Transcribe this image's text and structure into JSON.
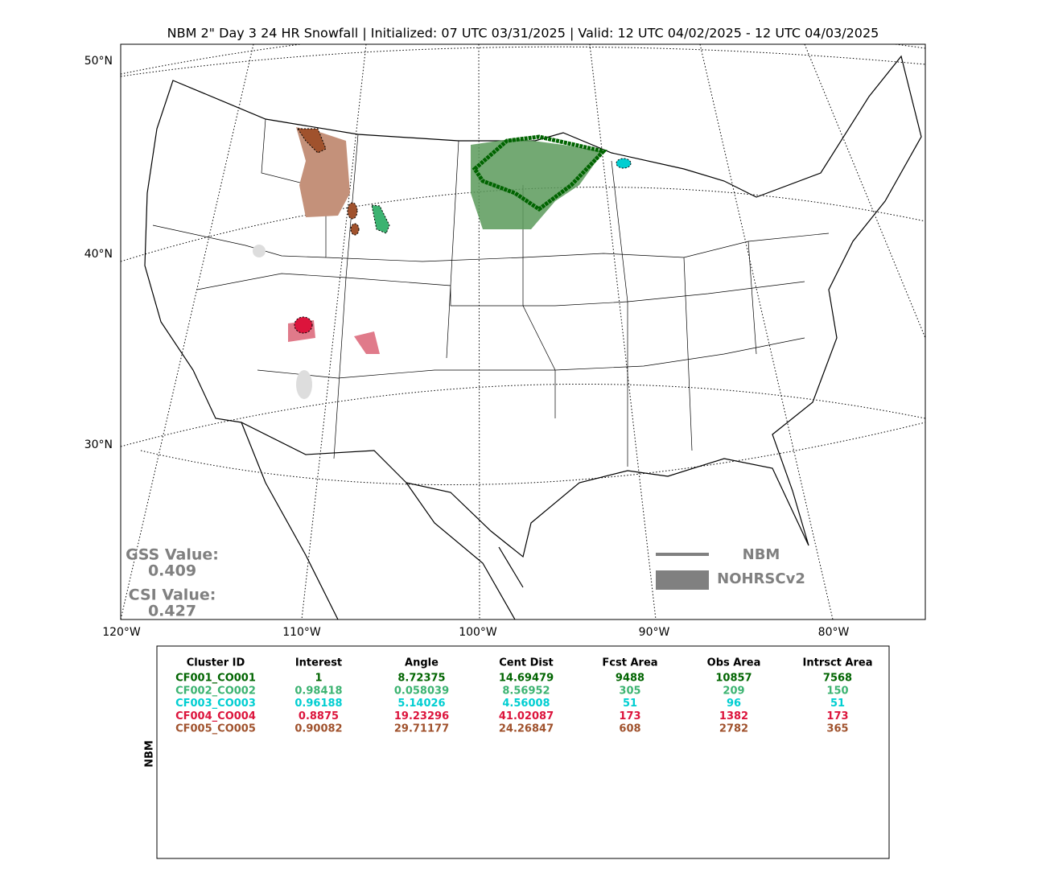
{
  "title": "NBM 2\" Day 3 24 HR Snowfall | Initialized: 07 UTC 03/31/2025 | Valid: 12 UTC 04/02/2025 - 12 UTC 04/03/2025",
  "map": {
    "lat_labels": [
      "50°N",
      "40°N",
      "30°N"
    ],
    "lon_labels": [
      "120°W",
      "110°W",
      "100°W",
      "90°W",
      "80°W"
    ],
    "legend": [
      "NBM",
      "NOHRSCv2"
    ],
    "scores": [
      {
        "label": "GSS Value:",
        "value": 0.409
      },
      {
        "label": "CSI Value:",
        "value": 0.427
      }
    ]
  },
  "table": {
    "side_label": "NBM",
    "columns": [
      "Cluster ID",
      "Interest",
      "Angle",
      "Cent Dist",
      "Fcst Area",
      "Obs Area",
      "Intrsct Area"
    ],
    "row_colors": [
      "#006400",
      "#3cb371",
      "#00ced1",
      "#dc143c",
      "#a0522d"
    ],
    "rows": [
      [
        "CF001_CO001",
        1,
        8.72375,
        14.69479,
        9488,
        10857,
        7568
      ],
      [
        "CF002_CO002",
        0.98418,
        0.058039,
        8.56952,
        305,
        209,
        150
      ],
      [
        "CF003_CO003",
        0.96188,
        5.14026,
        4.56008,
        51,
        96,
        51
      ],
      [
        "CF004_CO004",
        0.8875,
        19.23296,
        41.02087,
        173,
        1382,
        173
      ],
      [
        "CF005_CO005",
        0.90082,
        29.71177,
        24.26847,
        608,
        2782,
        365
      ]
    ]
  }
}
